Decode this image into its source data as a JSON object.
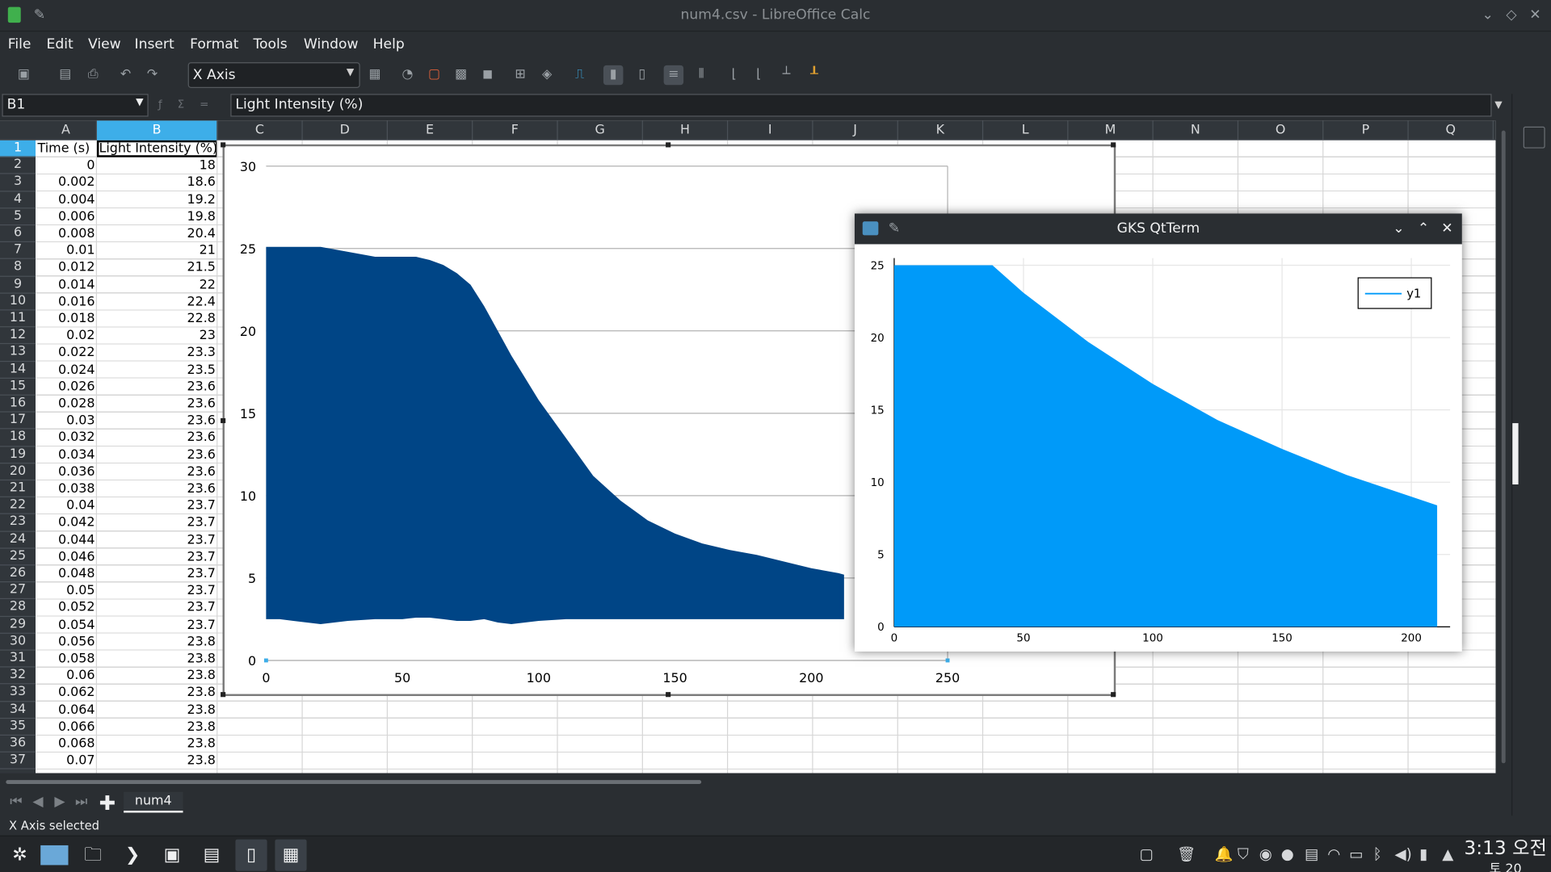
{
  "window": {
    "title": "num4.csv - LibreOffice Calc"
  },
  "menu": [
    "File",
    "Edit",
    "View",
    "Insert",
    "Format",
    "Tools",
    "Window",
    "Help"
  ],
  "toolbar": {
    "element_selector": "X Axis"
  },
  "formula_bar": {
    "cell_ref": "B1",
    "content": "Light Intensity (%)"
  },
  "columns": [
    "A",
    "B",
    "C",
    "D",
    "E",
    "F",
    "G",
    "H",
    "I",
    "J",
    "K",
    "L",
    "M",
    "N",
    "O",
    "P",
    "Q"
  ],
  "rows": [
    "1",
    "2",
    "3",
    "4",
    "5",
    "6",
    "7",
    "8",
    "9",
    "10",
    "11",
    "12",
    "13",
    "14",
    "15",
    "16",
    "17",
    "18",
    "19",
    "20",
    "21",
    "22",
    "23",
    "24",
    "25",
    "26",
    "27",
    "28",
    "29",
    "30",
    "31",
    "32",
    "33",
    "34",
    "35",
    "36",
    "37"
  ],
  "sheet": {
    "header_a": "Time (s)",
    "header_b": "Light Intensity (%)",
    "col_a": [
      "0",
      "0.002",
      "0.004",
      "0.006",
      "0.008",
      "0.01",
      "0.012",
      "0.014",
      "0.016",
      "0.018",
      "0.02",
      "0.022",
      "0.024",
      "0.026",
      "0.028",
      "0.03",
      "0.032",
      "0.034",
      "0.036",
      "0.038",
      "0.04",
      "0.042",
      "0.044",
      "0.046",
      "0.048",
      "0.05",
      "0.052",
      "0.054",
      "0.056",
      "0.058",
      "0.06",
      "0.062",
      "0.064",
      "0.066",
      "0.068",
      "0.07"
    ],
    "col_b": [
      "18",
      "18.6",
      "19.2",
      "19.8",
      "20.4",
      "21",
      "21.5",
      "22",
      "22.4",
      "22.8",
      "23",
      "23.3",
      "23.5",
      "23.6",
      "23.6",
      "23.6",
      "23.6",
      "23.6",
      "23.6",
      "23.6",
      "23.7",
      "23.7",
      "23.7",
      "23.7",
      "23.7",
      "23.7",
      "23.7",
      "23.7",
      "23.8",
      "23.8",
      "23.8",
      "23.8",
      "23.8",
      "23.8",
      "23.8",
      "23.8"
    ]
  },
  "chart_data": [
    {
      "type": "area",
      "colors": {
        "fill": "#004586"
      },
      "x": [
        0,
        5,
        10,
        20,
        30,
        40,
        50,
        55,
        60,
        65,
        70,
        75,
        80,
        85,
        90,
        100,
        110,
        120,
        130,
        140,
        150,
        160,
        170,
        180,
        190,
        200,
        210,
        212
      ],
      "upper": [
        25.1,
        25.1,
        25.1,
        25.1,
        24.8,
        24.5,
        24.5,
        24.5,
        24.3,
        24.0,
        23.5,
        22.8,
        21.5,
        20.0,
        18.5,
        15.8,
        13.5,
        11.2,
        9.7,
        8.5,
        7.7,
        7.1,
        6.7,
        6.4,
        6.0,
        5.6,
        5.3,
        5.2
      ],
      "lower": [
        2.5,
        2.5,
        2.4,
        2.2,
        2.4,
        2.5,
        2.5,
        2.6,
        2.6,
        2.5,
        2.4,
        2.4,
        2.5,
        2.3,
        2.2,
        2.4,
        2.5,
        2.5,
        2.5,
        2.5,
        2.5,
        2.5,
        2.5,
        2.5,
        2.5,
        2.5,
        2.5,
        2.5
      ],
      "xlim": [
        0,
        250
      ],
      "ylim": [
        0,
        30
      ],
      "xticks": [
        0,
        50,
        100,
        150,
        200,
        250
      ],
      "yticks": [
        0,
        5,
        10,
        15,
        20,
        25,
        30
      ],
      "grid": true
    },
    {
      "type": "area",
      "window_title": "GKS QtTerm",
      "series": [
        {
          "name": "y1",
          "color": "#009af9"
        }
      ],
      "x": [
        0,
        38,
        50,
        75,
        100,
        125,
        150,
        175,
        200,
        210
      ],
      "y": [
        25,
        25,
        23.1,
        19.7,
        16.8,
        14.3,
        12.3,
        10.5,
        9.0,
        8.4
      ],
      "xlim": [
        0,
        215
      ],
      "ylim": [
        0,
        25.5
      ],
      "xticks": [
        0,
        50,
        100,
        150,
        200
      ],
      "yticks": [
        0,
        5,
        10,
        15,
        20,
        25
      ],
      "legend": "top-right",
      "grid": true
    }
  ],
  "sheet_tabs": [
    "num4"
  ],
  "status": {
    "text": "X Axis selected"
  },
  "taskbar": {
    "time": "3:13 오전",
    "date": "토 20"
  }
}
